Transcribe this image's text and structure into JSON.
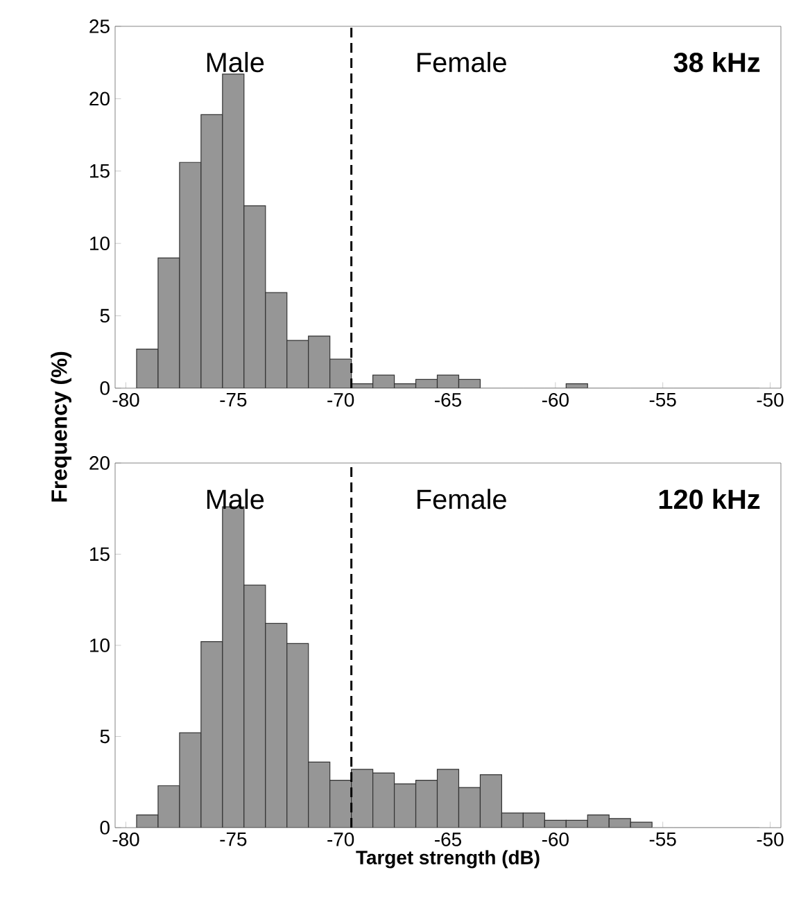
{
  "chart_data": [
    {
      "type": "histogram",
      "ylabel": "Frequency (%)",
      "annotations": [
        "Male",
        "Female",
        "38 kHz"
      ],
      "bins": [
        -79.5,
        -78.5,
        -77.5,
        -76.5,
        -75.5,
        -74.5,
        -73.5,
        -72.5,
        -71.5,
        -70.5,
        -69.5,
        -68.5,
        -67.5,
        -66.5,
        -65.5,
        -64.5,
        -63.5,
        -62.5,
        -61.5,
        -60.5,
        -59.5,
        -58.5,
        -57.5,
        -56.5,
        -55.5,
        -54.5,
        -53.5,
        -52.5,
        -51.5,
        -50.5
      ],
      "values": [
        2.7,
        9.0,
        15.6,
        18.9,
        21.7,
        12.6,
        6.6,
        3.3,
        3.6,
        2.0,
        0.3,
        0.9,
        0.3,
        0.6,
        0.9,
        0.6,
        0,
        0,
        0,
        0,
        0.3,
        0,
        0,
        0,
        0,
        0,
        0,
        0,
        0
      ],
      "color": "#969696",
      "xlim": [
        -80.5,
        -49.5
      ],
      "ylim": [
        0,
        25
      ],
      "xticks": [
        -80,
        -75,
        -70,
        -65,
        -60,
        -55,
        -50
      ],
      "yticks": [
        0,
        5,
        10,
        15,
        20,
        25
      ],
      "ref_lines": [
        {
          "axis": "x",
          "value": -69.5,
          "color": "#000000",
          "line_style": "dashed"
        }
      ]
    },
    {
      "type": "histogram",
      "xlabel": "Target strength (dB)",
      "annotations": [
        "Male",
        "Female",
        "120 kHz"
      ],
      "bins": [
        -79.5,
        -78.5,
        -77.5,
        -76.5,
        -75.5,
        -74.5,
        -73.5,
        -72.5,
        -71.5,
        -70.5,
        -69.5,
        -68.5,
        -67.5,
        -66.5,
        -65.5,
        -64.5,
        -63.5,
        -62.5,
        -61.5,
        -60.5,
        -59.5,
        -58.5,
        -57.5,
        -56.5,
        -55.5,
        -54.5,
        -53.5,
        -52.5,
        -51.5,
        -50.5
      ],
      "values": [
        0.7,
        2.3,
        5.2,
        10.2,
        17.6,
        13.3,
        11.2,
        10.1,
        3.6,
        2.6,
        3.2,
        3.0,
        2.4,
        2.6,
        3.2,
        2.2,
        2.9,
        0.8,
        0.8,
        0.4,
        0.4,
        0.7,
        0.5,
        0.3,
        0,
        0,
        0,
        0,
        0
      ],
      "color": "#969696",
      "xlim": [
        -80.5,
        -49.5
      ],
      "ylim": [
        0,
        20
      ],
      "xticks": [
        -80,
        -75,
        -70,
        -65,
        -60,
        -55,
        -50
      ],
      "yticks": [
        0,
        5,
        10,
        15,
        20
      ],
      "ref_lines": [
        {
          "axis": "x",
          "value": -69.5,
          "color": "#000000",
          "line_style": "dashed"
        }
      ]
    }
  ]
}
